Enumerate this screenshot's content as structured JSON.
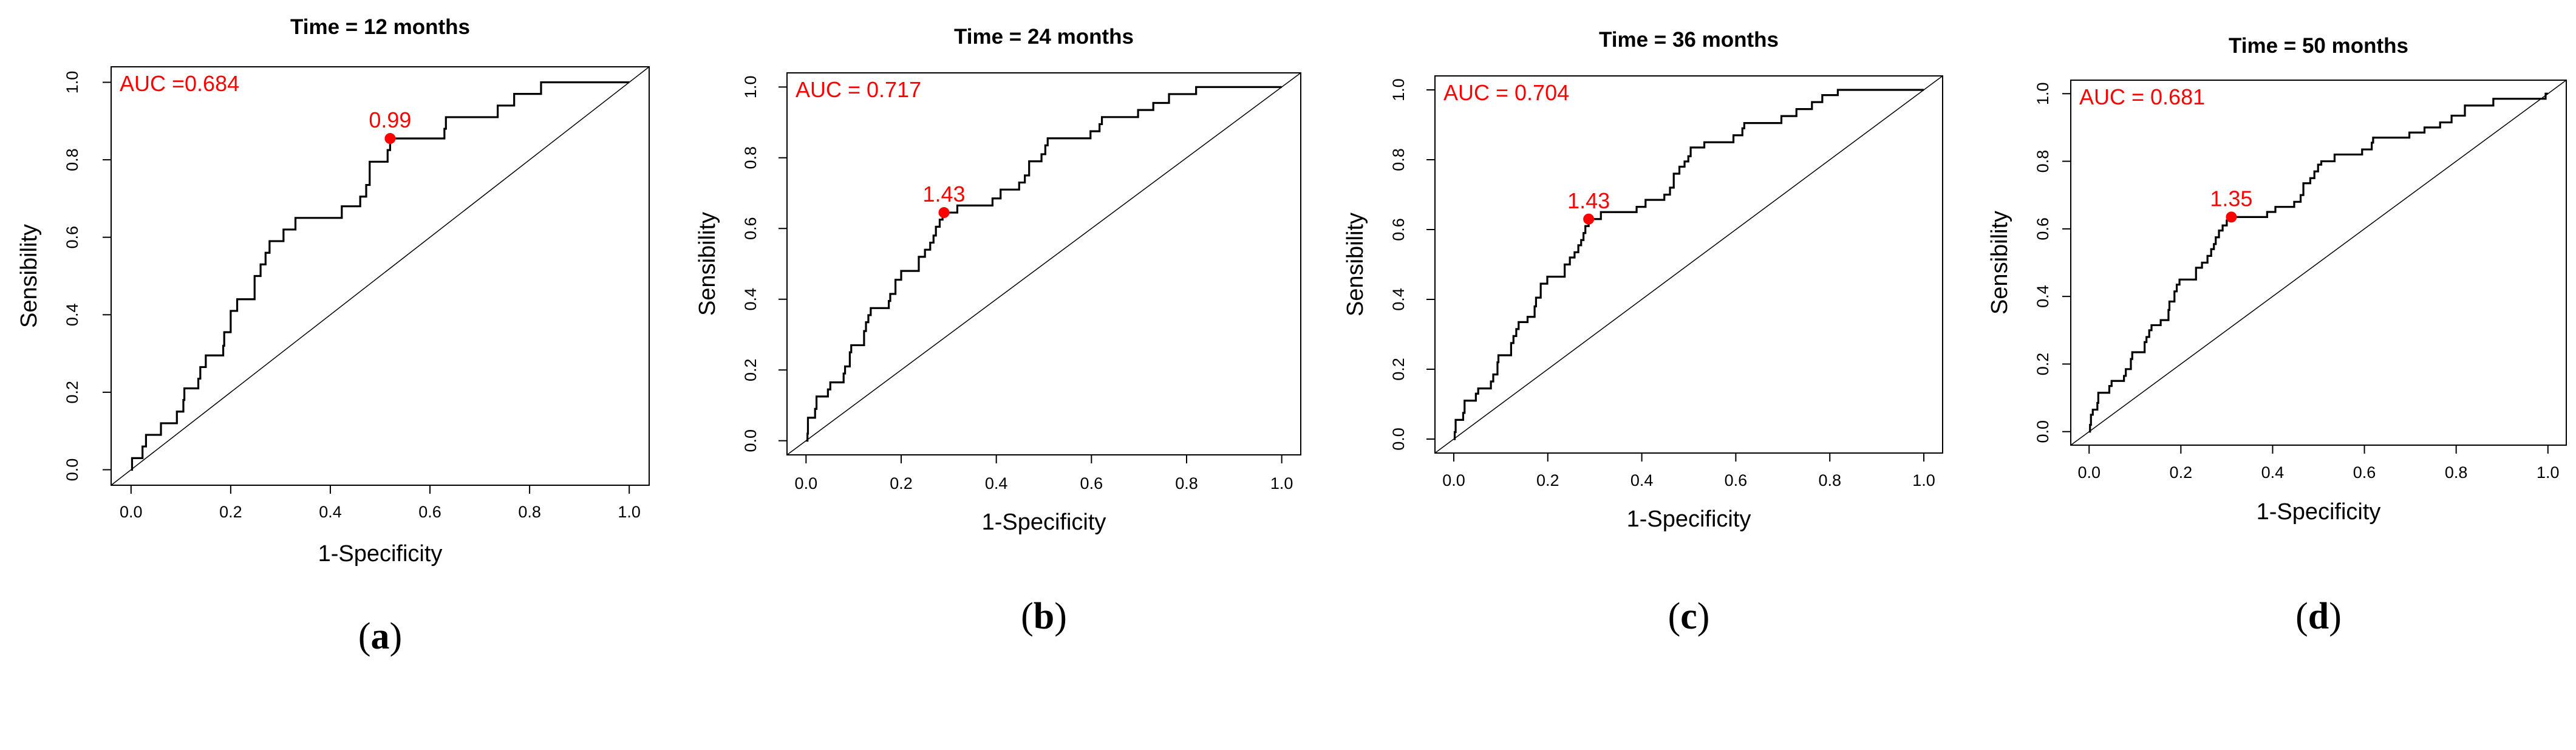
{
  "colors": {
    "curve": "#000000",
    "marker": "#ff0000",
    "diagonal": "#000000"
  },
  "chart_data": [
    {
      "type": "line",
      "panel_label_open": "(",
      "panel_label": "a",
      "panel_label_close": ")",
      "title": "Time = 12 months",
      "xlabel": "1-Specificity",
      "ylabel": "Sensibility",
      "xlim": [
        0,
        1
      ],
      "ylim": [
        0,
        1
      ],
      "xticks": [
        "0.0",
        "0.2",
        "0.4",
        "0.6",
        "0.8",
        "1.0"
      ],
      "yticks": [
        "0.0",
        "0.2",
        "0.4",
        "0.6",
        "0.8",
        "1.0"
      ],
      "auc_label": "AUC =0.684",
      "cutoff": {
        "label": "0.99",
        "x": 0.52,
        "y": 0.855
      },
      "steps": [
        [
          0.002,
          0.03
        ],
        [
          0.023,
          0.06
        ],
        [
          0.03,
          0.09
        ],
        [
          0.06,
          0.12
        ],
        [
          0.092,
          0.15
        ],
        [
          0.105,
          0.18
        ],
        [
          0.107,
          0.21
        ],
        [
          0.135,
          0.235
        ],
        [
          0.139,
          0.265
        ],
        [
          0.15,
          0.295
        ],
        [
          0.185,
          0.32
        ],
        [
          0.187,
          0.355
        ],
        [
          0.2,
          0.41
        ],
        [
          0.213,
          0.44
        ],
        [
          0.248,
          0.5
        ],
        [
          0.26,
          0.53
        ],
        [
          0.27,
          0.56
        ],
        [
          0.278,
          0.59
        ],
        [
          0.306,
          0.62
        ],
        [
          0.33,
          0.65
        ],
        [
          0.423,
          0.68
        ],
        [
          0.46,
          0.705
        ],
        [
          0.472,
          0.735
        ],
        [
          0.479,
          0.795
        ],
        [
          0.515,
          0.825
        ],
        [
          0.52,
          0.855
        ],
        [
          0.629,
          0.88
        ],
        [
          0.632,
          0.91
        ],
        [
          0.736,
          0.94
        ],
        [
          0.769,
          0.97
        ],
        [
          0.823,
          1.0
        ],
        [
          1.0,
          1.0
        ]
      ]
    },
    {
      "type": "line",
      "panel_label_open": "(",
      "panel_label": "b",
      "panel_label_close": ")",
      "title": "Time = 24 months",
      "xlabel": "1-Specificity",
      "ylabel": "Sensibility",
      "xlim": [
        0,
        1
      ],
      "ylim": [
        0,
        1
      ],
      "xticks": [
        "0.0",
        "0.2",
        "0.4",
        "0.6",
        "0.8",
        "1.0"
      ],
      "yticks": [
        "0.0",
        "0.2",
        "0.4",
        "0.6",
        "0.8",
        "1.0"
      ],
      "auc_label": "AUC = 0.717",
      "cutoff": {
        "label": "1.43",
        "x": 0.29,
        "y": 0.645
      },
      "steps": [
        [
          0.003,
          0.02
        ],
        [
          0.004,
          0.065
        ],
        [
          0.019,
          0.09
        ],
        [
          0.022,
          0.125
        ],
        [
          0.046,
          0.145
        ],
        [
          0.051,
          0.165
        ],
        [
          0.079,
          0.19
        ],
        [
          0.082,
          0.21
        ],
        [
          0.092,
          0.25
        ],
        [
          0.095,
          0.27
        ],
        [
          0.122,
          0.31
        ],
        [
          0.126,
          0.335
        ],
        [
          0.131,
          0.355
        ],
        [
          0.136,
          0.375
        ],
        [
          0.174,
          0.395
        ],
        [
          0.177,
          0.415
        ],
        [
          0.188,
          0.455
        ],
        [
          0.2,
          0.48
        ],
        [
          0.237,
          0.52
        ],
        [
          0.25,
          0.54
        ],
        [
          0.261,
          0.56
        ],
        [
          0.268,
          0.58
        ],
        [
          0.273,
          0.605
        ],
        [
          0.281,
          0.625
        ],
        [
          0.287,
          0.645
        ],
        [
          0.318,
          0.665
        ],
        [
          0.392,
          0.685
        ],
        [
          0.409,
          0.71
        ],
        [
          0.448,
          0.73
        ],
        [
          0.46,
          0.75
        ],
        [
          0.469,
          0.79
        ],
        [
          0.495,
          0.81
        ],
        [
          0.503,
          0.835
        ],
        [
          0.508,
          0.855
        ],
        [
          0.598,
          0.875
        ],
        [
          0.617,
          0.895
        ],
        [
          0.622,
          0.915
        ],
        [
          0.698,
          0.935
        ],
        [
          0.73,
          0.955
        ],
        [
          0.763,
          0.98
        ],
        [
          0.82,
          1.0
        ],
        [
          1.0,
          1.0
        ]
      ]
    },
    {
      "type": "line",
      "panel_label_open": "(",
      "panel_label": "c",
      "panel_label_close": ")",
      "title": "Time = 36 months",
      "xlabel": "1-Specificity",
      "ylabel": "Sensibility",
      "xlim": [
        0,
        1
      ],
      "ylim": [
        0,
        1
      ],
      "xticks": [
        "0.0",
        "0.2",
        "0.4",
        "0.6",
        "0.8",
        "1.0"
      ],
      "yticks": [
        "0.0",
        "0.2",
        "0.4",
        "0.6",
        "0.8",
        "1.0"
      ],
      "auc_label": "AUC = 0.704",
      "cutoff": {
        "label": "1.43",
        "x": 0.287,
        "y": 0.63
      },
      "steps": [
        [
          0.002,
          0.02
        ],
        [
          0.004,
          0.055
        ],
        [
          0.02,
          0.075
        ],
        [
          0.023,
          0.11
        ],
        [
          0.047,
          0.13
        ],
        [
          0.052,
          0.145
        ],
        [
          0.079,
          0.165
        ],
        [
          0.084,
          0.185
        ],
        [
          0.093,
          0.22
        ],
        [
          0.095,
          0.24
        ],
        [
          0.122,
          0.275
        ],
        [
          0.127,
          0.295
        ],
        [
          0.133,
          0.315
        ],
        [
          0.138,
          0.335
        ],
        [
          0.157,
          0.35
        ],
        [
          0.172,
          0.38
        ],
        [
          0.175,
          0.405
        ],
        [
          0.185,
          0.445
        ],
        [
          0.199,
          0.465
        ],
        [
          0.236,
          0.5
        ],
        [
          0.247,
          0.52
        ],
        [
          0.257,
          0.535
        ],
        [
          0.265,
          0.555
        ],
        [
          0.271,
          0.57
        ],
        [
          0.276,
          0.59
        ],
        [
          0.28,
          0.61
        ],
        [
          0.287,
          0.63
        ],
        [
          0.313,
          0.65
        ],
        [
          0.389,
          0.665
        ],
        [
          0.408,
          0.685
        ],
        [
          0.448,
          0.7
        ],
        [
          0.46,
          0.72
        ],
        [
          0.468,
          0.76
        ],
        [
          0.48,
          0.78
        ],
        [
          0.491,
          0.795
        ],
        [
          0.499,
          0.81
        ],
        [
          0.504,
          0.835
        ],
        [
          0.533,
          0.85
        ],
        [
          0.595,
          0.87
        ],
        [
          0.614,
          0.89
        ],
        [
          0.618,
          0.905
        ],
        [
          0.697,
          0.925
        ],
        [
          0.729,
          0.945
        ],
        [
          0.762,
          0.965
        ],
        [
          0.784,
          0.985
        ],
        [
          0.817,
          1.0
        ],
        [
          1.0,
          1.0
        ]
      ]
    },
    {
      "type": "line",
      "panel_label_open": "(",
      "panel_label": "d",
      "panel_label_close": ")",
      "title": "Time = 50 months",
      "xlabel": "1-Specificity",
      "ylabel": "Sensibility",
      "xlim": [
        0,
        1
      ],
      "ylim": [
        0,
        1
      ],
      "xticks": [
        "0.0",
        "0.2",
        "0.4",
        "0.6",
        "0.8",
        "1.0"
      ],
      "yticks": [
        "0.0",
        "0.2",
        "0.4",
        "0.6",
        "0.8",
        "1.0"
      ],
      "auc_label": "AUC = 0.681",
      "cutoff": {
        "label": "1.35",
        "x": 0.31,
        "y": 0.635
      },
      "steps": [
        [
          0.002,
          0.02
        ],
        [
          0.004,
          0.05
        ],
        [
          0.008,
          0.065
        ],
        [
          0.018,
          0.085
        ],
        [
          0.02,
          0.115
        ],
        [
          0.044,
          0.135
        ],
        [
          0.049,
          0.15
        ],
        [
          0.076,
          0.165
        ],
        [
          0.08,
          0.185
        ],
        [
          0.091,
          0.215
        ],
        [
          0.094,
          0.235
        ],
        [
          0.121,
          0.265
        ],
        [
          0.125,
          0.28
        ],
        [
          0.131,
          0.3
        ],
        [
          0.136,
          0.315
        ],
        [
          0.156,
          0.33
        ],
        [
          0.173,
          0.36
        ],
        [
          0.175,
          0.385
        ],
        [
          0.186,
          0.415
        ],
        [
          0.191,
          0.435
        ],
        [
          0.197,
          0.45
        ],
        [
          0.233,
          0.485
        ],
        [
          0.246,
          0.5
        ],
        [
          0.258,
          0.52
        ],
        [
          0.266,
          0.54
        ],
        [
          0.272,
          0.555
        ],
        [
          0.276,
          0.575
        ],
        [
          0.283,
          0.595
        ],
        [
          0.291,
          0.61
        ],
        [
          0.3,
          0.625
        ],
        [
          0.31,
          0.635
        ],
        [
          0.388,
          0.65
        ],
        [
          0.406,
          0.665
        ],
        [
          0.447,
          0.68
        ],
        [
          0.461,
          0.7
        ],
        [
          0.467,
          0.735
        ],
        [
          0.482,
          0.75
        ],
        [
          0.491,
          0.77
        ],
        [
          0.499,
          0.79
        ],
        [
          0.506,
          0.8
        ],
        [
          0.535,
          0.82
        ],
        [
          0.595,
          0.835
        ],
        [
          0.616,
          0.855
        ],
        [
          0.619,
          0.87
        ],
        [
          0.698,
          0.885
        ],
        [
          0.731,
          0.9
        ],
        [
          0.765,
          0.915
        ],
        [
          0.79,
          0.935
        ],
        [
          0.819,
          0.965
        ],
        [
          0.881,
          0.985
        ],
        [
          0.995,
          1.0
        ],
        [
          1.0,
          1.0
        ]
      ]
    }
  ]
}
